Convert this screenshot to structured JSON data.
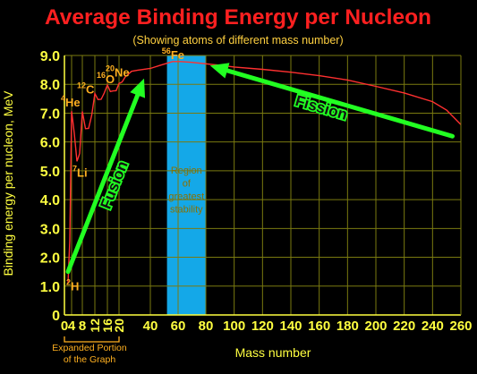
{
  "chart_data": {
    "type": "line",
    "title": "Average Binding Energy per Nucleon",
    "subtitle": "(Showing atoms of different mass number)",
    "xlabel": "Mass number",
    "ylabel": "Binding energy per nucleon, MeV",
    "xlim": [
      0,
      260
    ],
    "ylim": [
      0,
      9.0
    ],
    "grid": true,
    "y_ticks": [
      "0",
      "1.0",
      "2.0",
      "3.0",
      "4.0",
      "5.0",
      "6.0",
      "7.0",
      "8.0",
      "9.0"
    ],
    "x_ticks_main": [
      "0",
      "60",
      "80",
      "100",
      "120",
      "140",
      "160",
      "180",
      "200",
      "220",
      "240",
      "260"
    ],
    "x_ticks_expanded": [
      "4",
      "8",
      "12",
      "16",
      "20",
      "40"
    ],
    "expanded_label_line1": "Expanded Portion",
    "expanded_label_line2": "of the Graph",
    "series": [
      {
        "x": [
          2,
          3,
          4,
          5,
          6,
          7,
          8,
          9,
          10,
          11,
          12,
          13,
          14,
          15,
          16,
          17,
          18,
          19,
          20,
          22,
          24,
          28,
          32,
          40,
          48,
          56,
          62,
          70,
          80,
          90,
          100,
          120,
          140,
          160,
          180,
          200,
          220,
          240,
          250,
          260
        ],
        "values": [
          1.1,
          2.6,
          7.07,
          6.3,
          5.33,
          5.6,
          7.06,
          6.46,
          6.47,
          6.93,
          7.68,
          7.47,
          7.48,
          7.7,
          7.98,
          7.75,
          7.77,
          7.78,
          8.03,
          8.08,
          8.26,
          8.45,
          8.49,
          8.55,
          8.67,
          8.79,
          8.79,
          8.76,
          8.71,
          8.66,
          8.6,
          8.52,
          8.42,
          8.3,
          8.15,
          7.93,
          7.7,
          7.4,
          7.1,
          6.6
        ]
      }
    ],
    "stability_region": {
      "x_range": [
        52,
        80
      ],
      "label": [
        "Region",
        "of",
        "greatest",
        "stability"
      ]
    },
    "isotope_labels": [
      {
        "mass": "2",
        "symbol": "H",
        "x": 2,
        "y": 1.1
      },
      {
        "mass": "4",
        "symbol": "He",
        "x": 4,
        "y": 7.07
      },
      {
        "mass": "7",
        "symbol": "Li",
        "x": 7,
        "y": 5.6
      },
      {
        "mass": "12",
        "symbol": "C",
        "x": 12,
        "y": 7.68
      },
      {
        "mass": "16",
        "symbol": "O",
        "x": 16,
        "y": 7.98
      },
      {
        "mass": "20",
        "symbol": "Ne",
        "x": 20,
        "y": 8.03
      },
      {
        "mass": "56",
        "symbol": "Fe",
        "x": 56,
        "y": 8.79
      }
    ],
    "annotations": [
      {
        "text": "Fusion",
        "from": [
          2,
          1.5
        ],
        "to": [
          36,
          8.2
        ]
      },
      {
        "text": "Fission",
        "from": [
          254,
          6.2
        ],
        "to": [
          83,
          8.65
        ]
      }
    ]
  },
  "colors": {
    "title": "#ff2020",
    "subtitle": "#ffd040",
    "axis_text": "#ffff40",
    "grid": "#7a7a10",
    "curve": "#ff3030",
    "isotope": "#ffb020",
    "region": "#14a8e8",
    "region_text": "#8a7000",
    "arrow": "#22ff22",
    "arrow_text": "#111111",
    "expanded": "#ffb020"
  }
}
